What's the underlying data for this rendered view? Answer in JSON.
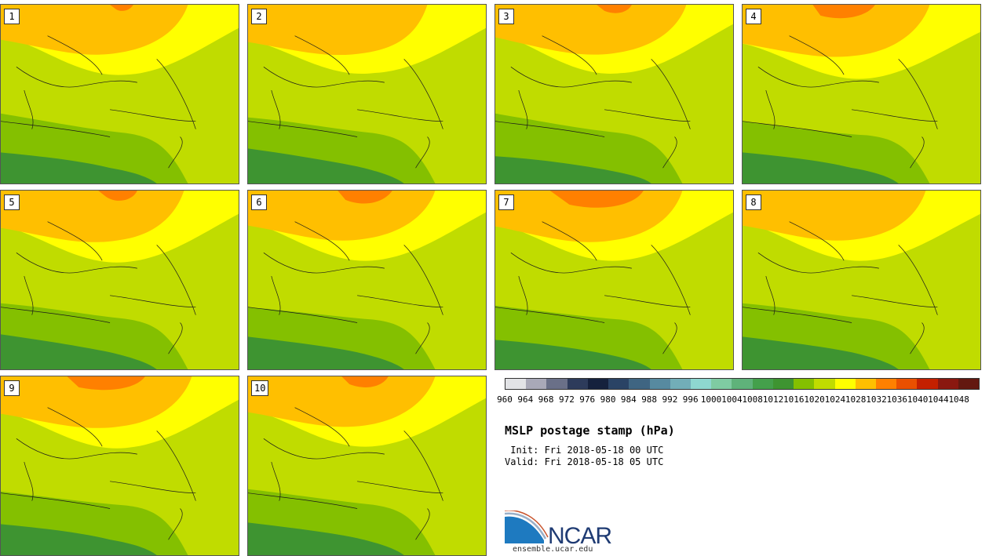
{
  "stamps": [
    {
      "label": "1"
    },
    {
      "label": "2"
    },
    {
      "label": "3"
    },
    {
      "label": "4"
    },
    {
      "label": "5"
    },
    {
      "label": "6"
    },
    {
      "label": "7"
    },
    {
      "label": "8"
    },
    {
      "label": "9"
    },
    {
      "label": "10"
    }
  ],
  "colorbar": {
    "ticks": [
      "960",
      "964",
      "968",
      "972",
      "976",
      "980",
      "984",
      "988",
      "992",
      "996",
      "1000",
      "1004",
      "1008",
      "1012",
      "1016",
      "1020",
      "1024",
      "1028",
      "1032",
      "1036",
      "1040",
      "1044",
      "1048"
    ],
    "colors": [
      "#e2e3e6",
      "#a9a9b8",
      "#6a7088",
      "#2d3b5b",
      "#15213d",
      "#2a4365",
      "#3f6582",
      "#578aa0",
      "#72aeb8",
      "#8ed7d0",
      "#7fcba2",
      "#5fb27a",
      "#44a04b",
      "#3e9431",
      "#84c000",
      "#c0dc00",
      "#ffff00",
      "#ffbf00",
      "#ff8000",
      "#ea5000",
      "#c42000",
      "#8a1810",
      "#631810"
    ]
  },
  "title": "MSLP postage stamp (hPa)",
  "init": " Init: Fri 2018-05-18 00 UTC",
  "valid": "Valid: Fri 2018-05-18 05 UTC",
  "logo": {
    "text": "NCAR",
    "url": "ensemble.ucar.edu"
  }
}
